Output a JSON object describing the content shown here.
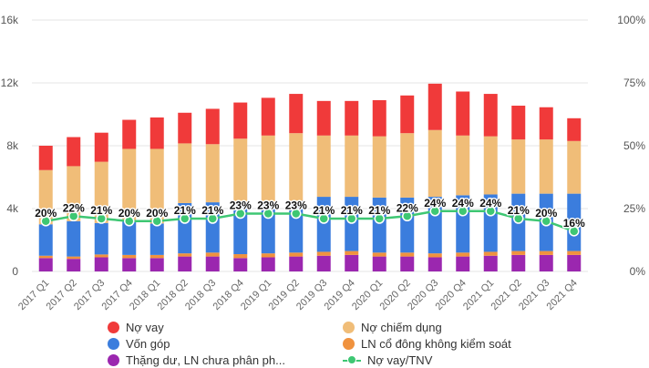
{
  "chart_data": {
    "type": "bar",
    "stacked": true,
    "categories": [
      "2017 Q1",
      "2017 Q2",
      "2017 Q3",
      "2017 Q4",
      "2018 Q1",
      "2018 Q2",
      "2018 Q3",
      "2018 Q4",
      "2019 Q1",
      "2019 Q2",
      "2019 Q3",
      "2019 Q4",
      "2020 Q1",
      "2020 Q2",
      "2020 Q3",
      "2020 Q4",
      "2021 Q1",
      "2021 Q2",
      "2021 Q3",
      "2021 Q4"
    ],
    "y_left": {
      "ticks": [
        "0",
        "4k",
        "8k",
        "12k",
        "16k"
      ],
      "ylim": [
        0,
        16000
      ]
    },
    "y_right": {
      "ticks": [
        "0%",
        "25%",
        "50%",
        "75%",
        "100%"
      ],
      "ylim": [
        0,
        100
      ]
    },
    "series": [
      {
        "name": "Thặng dư, LN chưa phân ph...",
        "color": "#9b27af",
        "values": [
          850,
          800,
          900,
          850,
          850,
          950,
          950,
          850,
          900,
          950,
          1000,
          1050,
          950,
          950,
          900,
          950,
          1000,
          1050,
          1050,
          1050
        ]
      },
      {
        "name": "LN cổ đông không kiểm soát",
        "color": "#f0923e",
        "values": [
          150,
          150,
          180,
          200,
          200,
          200,
          250,
          250,
          250,
          250,
          250,
          250,
          250,
          250,
          250,
          250,
          250,
          250,
          250,
          250
        ]
      },
      {
        "name": "Vốn góp",
        "color": "#3b7ddd",
        "values": [
          2000,
          2250,
          2000,
          2150,
          2000,
          3200,
          3200,
          3200,
          3200,
          3300,
          3500,
          3450,
          3500,
          3500,
          3600,
          3650,
          3650,
          3650,
          3650,
          3650
        ]
      },
      {
        "name": "Nợ chiếm dụng",
        "color": "#f0bd78",
        "values": [
          3450,
          3500,
          3900,
          4600,
          4750,
          3800,
          3700,
          4150,
          4300,
          4300,
          3900,
          3900,
          3900,
          4100,
          4250,
          3800,
          3700,
          3450,
          3450,
          3350
        ]
      },
      {
        "name": "Nợ vay",
        "color": "#f03a3a",
        "values": [
          1550,
          1850,
          1850,
          1850,
          2000,
          1950,
          2250,
          2300,
          2400,
          2500,
          2200,
          2200,
          2300,
          2400,
          2950,
          2800,
          2700,
          2150,
          2050,
          1450
        ]
      }
    ],
    "line_series": {
      "name": "Nợ vay/TNV",
      "color": "#3ec773",
      "values": [
        20,
        22,
        21,
        20,
        20,
        21,
        21,
        23,
        23,
        23,
        21,
        21,
        21,
        22,
        24,
        24,
        24,
        21,
        20,
        16
      ],
      "labels": [
        "20%",
        "22%",
        "21%",
        "20%",
        "20%",
        "21%",
        "21%",
        "23%",
        "23%",
        "23%",
        "21%",
        "21%",
        "21%",
        "22%",
        "24%",
        "24%",
        "24%",
        "21%",
        "20%",
        "16%"
      ]
    },
    "legend": [
      {
        "name": "Nợ vay",
        "color": "#f03a3a",
        "kind": "dot"
      },
      {
        "name": "Nợ chiếm dụng",
        "color": "#f0bd78",
        "kind": "dot"
      },
      {
        "name": "Vốn góp",
        "color": "#3b7ddd",
        "kind": "dot"
      },
      {
        "name": "LN cổ đông không kiểm soát",
        "color": "#f0923e",
        "kind": "dot"
      },
      {
        "name": "Thặng dư, LN chưa phân ph...",
        "color": "#9b27af",
        "kind": "dot"
      },
      {
        "name": "Nợ vay/TNV",
        "color": "#3ec773",
        "kind": "line"
      }
    ],
    "grid": true,
    "legend_position": "bottom"
  }
}
